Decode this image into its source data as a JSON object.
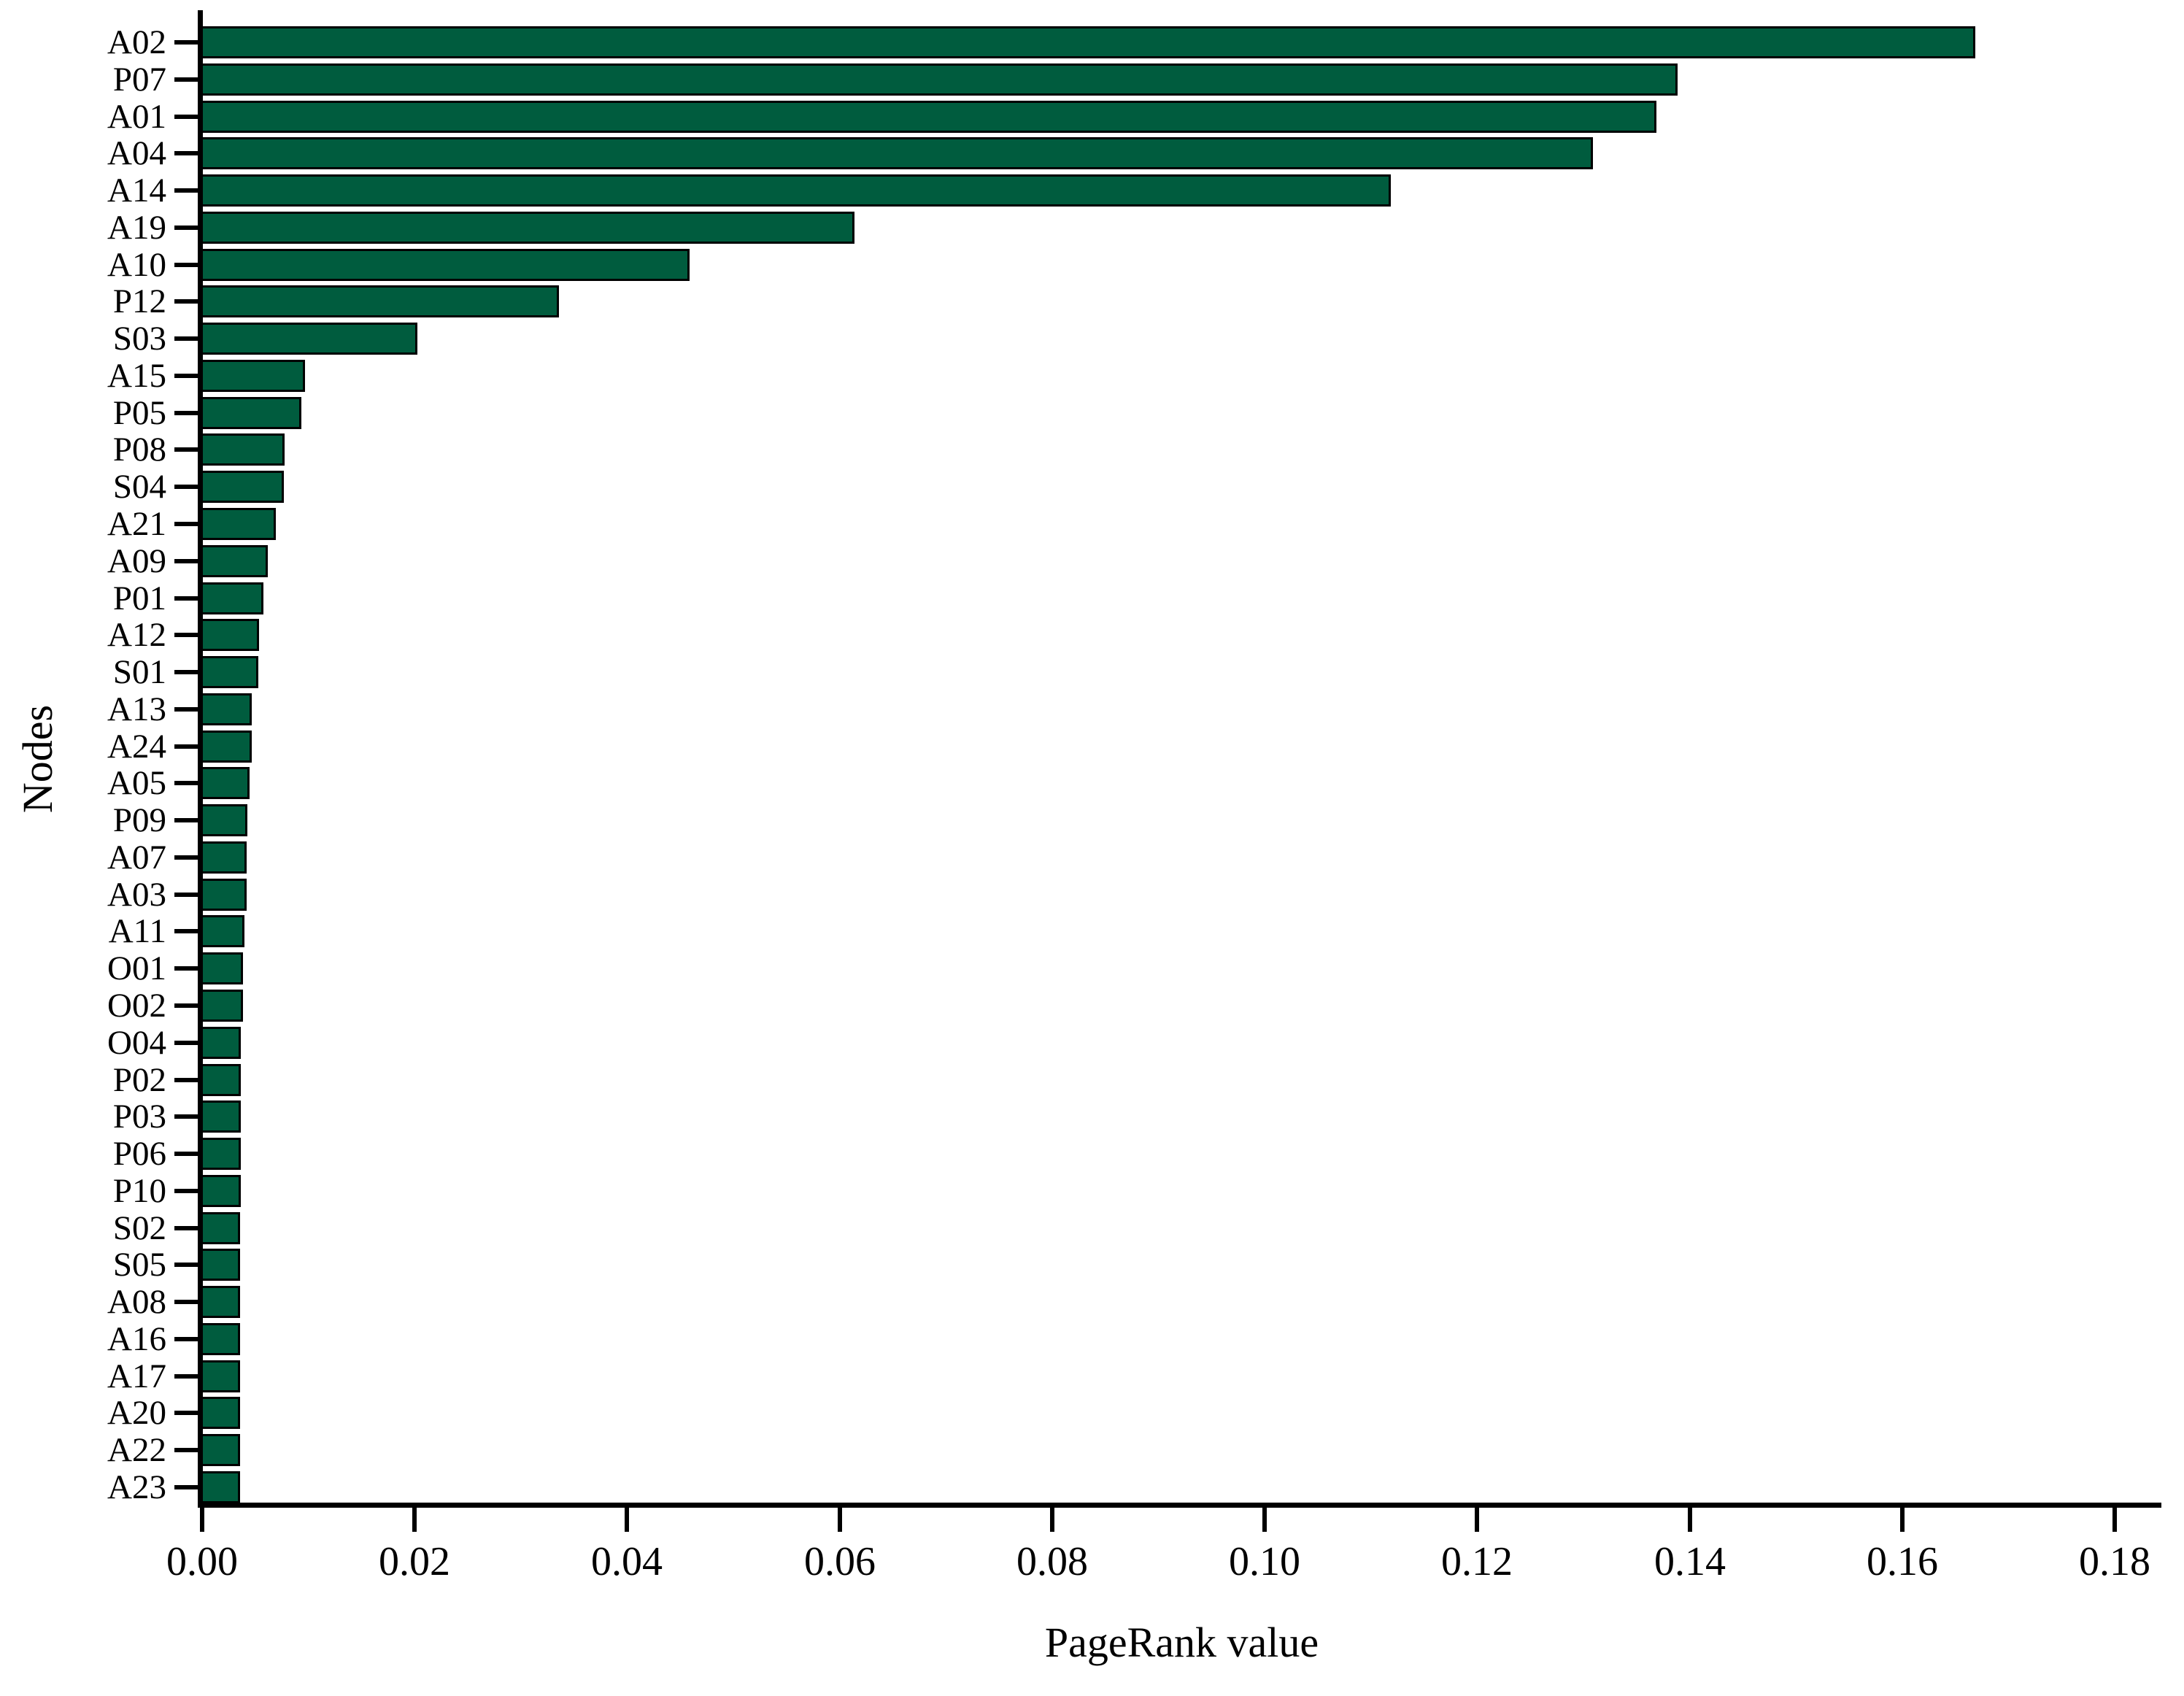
{
  "chart_data": {
    "type": "bar",
    "orientation": "horizontal",
    "title": "",
    "xlabel": "PageRank value",
    "ylabel": "Nodes",
    "xlim": [
      0.0,
      0.18
    ],
    "x_ticks": [
      0.0,
      0.02,
      0.04,
      0.06,
      0.08,
      0.1,
      0.12,
      0.14,
      0.16,
      0.18
    ],
    "x_tick_labels": [
      "0.00",
      "0.02",
      "0.04",
      "0.06",
      "0.08",
      "0.10",
      "0.12",
      "0.14",
      "0.16",
      "0.18"
    ],
    "grid": false,
    "legend": false,
    "categories": [
      "A02",
      "P07",
      "A01",
      "A04",
      "A14",
      "A19",
      "A10",
      "P12",
      "S03",
      "A15",
      "P05",
      "P08",
      "S04",
      "A21",
      "A09",
      "P01",
      "A12",
      "S01",
      "A13",
      "A24",
      "A05",
      "P09",
      "A07",
      "A03",
      "A11",
      "O01",
      "O02",
      "O04",
      "P02",
      "P03",
      "P06",
      "P10",
      "S02",
      "S05",
      "A08",
      "A16",
      "A17",
      "A20",
      "A22",
      "A23"
    ],
    "values": [
      0.167,
      0.139,
      0.137,
      0.131,
      0.112,
      0.0615,
      0.046,
      0.0337,
      0.0204,
      0.0098,
      0.0095,
      0.0079,
      0.0078,
      0.0071,
      0.0063,
      0.0059,
      0.0055,
      0.0054,
      0.0048,
      0.0048,
      0.0046,
      0.0044,
      0.0043,
      0.0043,
      0.0041,
      0.004,
      0.004,
      0.0038,
      0.0038,
      0.0038,
      0.0038,
      0.0038,
      0.0037,
      0.0037,
      0.0037,
      0.0037,
      0.0037,
      0.0037,
      0.0037,
      0.0037
    ],
    "colors": {
      "bar_fill": "#005C3E",
      "bar_border": "#000000",
      "axis": "#000000",
      "background": "#FFFFFF"
    }
  }
}
